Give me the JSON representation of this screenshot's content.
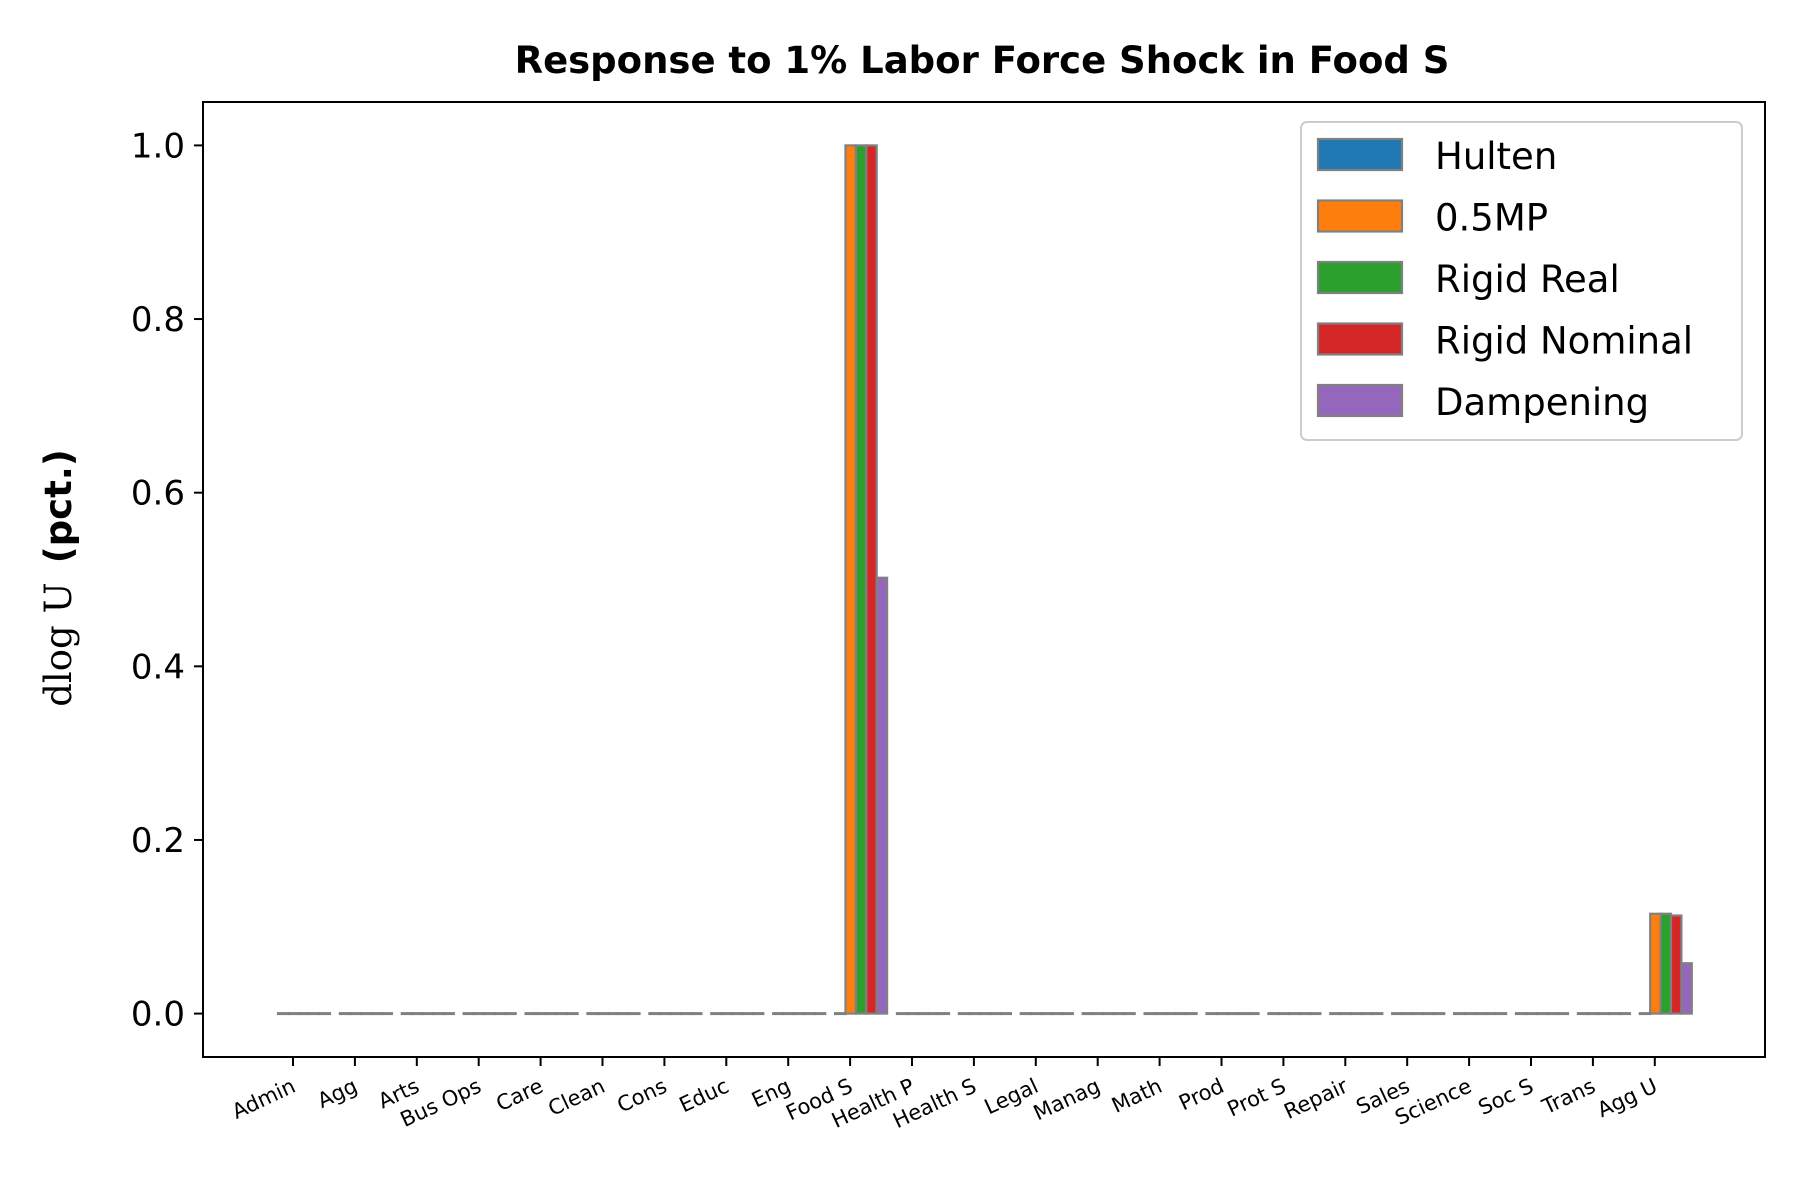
{
  "chart_data": {
    "type": "bar",
    "title": "Response to 1% Labor Force Shock in Food S",
    "ylabel": {
      "math": "dlog U",
      "unit": "(pct.)"
    },
    "xlabel": "",
    "ylim": [
      -0.05,
      1.05
    ],
    "yticks": [
      "0.0",
      "0.2",
      "0.4",
      "0.6",
      "0.8",
      "1.0"
    ],
    "grid": false,
    "legend_position": "top-right",
    "categories": [
      "Admin",
      "Agg",
      "Arts",
      "Bus Ops",
      "Care",
      "Clean",
      "Cons",
      "Educ",
      "Eng",
      "Food S",
      "Health P",
      "Health S",
      "Legal",
      "Manag",
      "Math",
      "Prod",
      "Prot S",
      "Repair",
      "Sales",
      "Science",
      "Soc S",
      "Trans",
      "Agg U"
    ],
    "series": [
      {
        "name": "Hulten",
        "color": "#1f77b4",
        "values": [
          0,
          0,
          0,
          0,
          0,
          0,
          0,
          0,
          0,
          0,
          0,
          0,
          0,
          0,
          0,
          0,
          0,
          0,
          0,
          0,
          0,
          0,
          0
        ]
      },
      {
        "name": "0.5MP",
        "color": "#ff7f0e",
        "values": [
          0,
          0,
          0,
          0,
          0,
          0,
          0,
          0,
          0,
          1.0,
          0,
          0,
          0,
          0,
          0,
          0,
          0,
          0,
          0,
          0,
          0,
          0,
          0.115
        ]
      },
      {
        "name": "Rigid Real",
        "color": "#2ca02c",
        "values": [
          0,
          0,
          0,
          0,
          0,
          0,
          0,
          0,
          0,
          1.0,
          0,
          0,
          0,
          0,
          0,
          0,
          0,
          0,
          0,
          0,
          0,
          0,
          0.115
        ]
      },
      {
        "name": "Rigid Nominal",
        "color": "#d62728",
        "values": [
          0,
          0,
          0,
          0,
          0,
          0,
          0,
          0,
          0,
          1.0,
          0,
          0,
          0,
          0,
          0,
          0,
          0,
          0,
          0,
          0,
          0,
          0,
          0.113
        ]
      },
      {
        "name": "Dampening",
        "color": "#9467bd",
        "values": [
          0,
          0,
          0,
          0,
          0,
          0,
          0,
          0,
          0,
          0.502,
          0,
          0,
          0,
          0,
          0,
          0,
          0,
          0,
          0,
          0,
          0,
          0,
          0.058
        ]
      }
    ],
    "bar_edge_color": "#808080"
  }
}
